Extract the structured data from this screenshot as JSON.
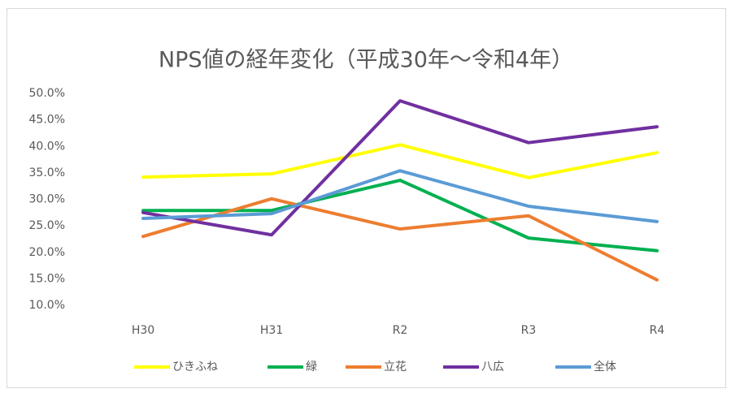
{
  "chart_data": {
    "type": "line",
    "title": "NPS値の経年変化（平成30年～令和4年）",
    "categories": [
      "H30",
      "H31",
      "R2",
      "R3",
      "R4"
    ],
    "series": [
      {
        "name": "ひきふね",
        "color": "#ffff00",
        "values": [
          34.2,
          34.8,
          40.3,
          34.1,
          38.8
        ]
      },
      {
        "name": "緑",
        "color": "#00b050",
        "values": [
          27.9,
          27.9,
          33.6,
          22.7,
          20.3
        ]
      },
      {
        "name": "立花",
        "color": "#ed7d31",
        "values": [
          23.0,
          30.1,
          24.4,
          26.9,
          14.8
        ]
      },
      {
        "name": "八広",
        "color": "#7030a0",
        "values": [
          27.5,
          23.3,
          48.6,
          40.7,
          43.7
        ]
      },
      {
        "name": "全体",
        "color": "#5b9bd5",
        "values": [
          26.4,
          27.3,
          35.4,
          28.7,
          25.8
        ]
      }
    ],
    "ylim": [
      10,
      50
    ],
    "yticks": [
      {
        "value": 10,
        "label": "10.0%"
      },
      {
        "value": 15,
        "label": "15.0%"
      },
      {
        "value": 20,
        "label": "20.0%"
      },
      {
        "value": 25,
        "label": "25.0%"
      },
      {
        "value": 30,
        "label": "30.0%"
      },
      {
        "value": 35,
        "label": "35.0%"
      },
      {
        "value": 40,
        "label": "40.0%"
      },
      {
        "value": 45,
        "label": "45.0%"
      },
      {
        "value": 50,
        "label": "50.0%"
      }
    ],
    "grid": false,
    "legend": "bottom"
  }
}
